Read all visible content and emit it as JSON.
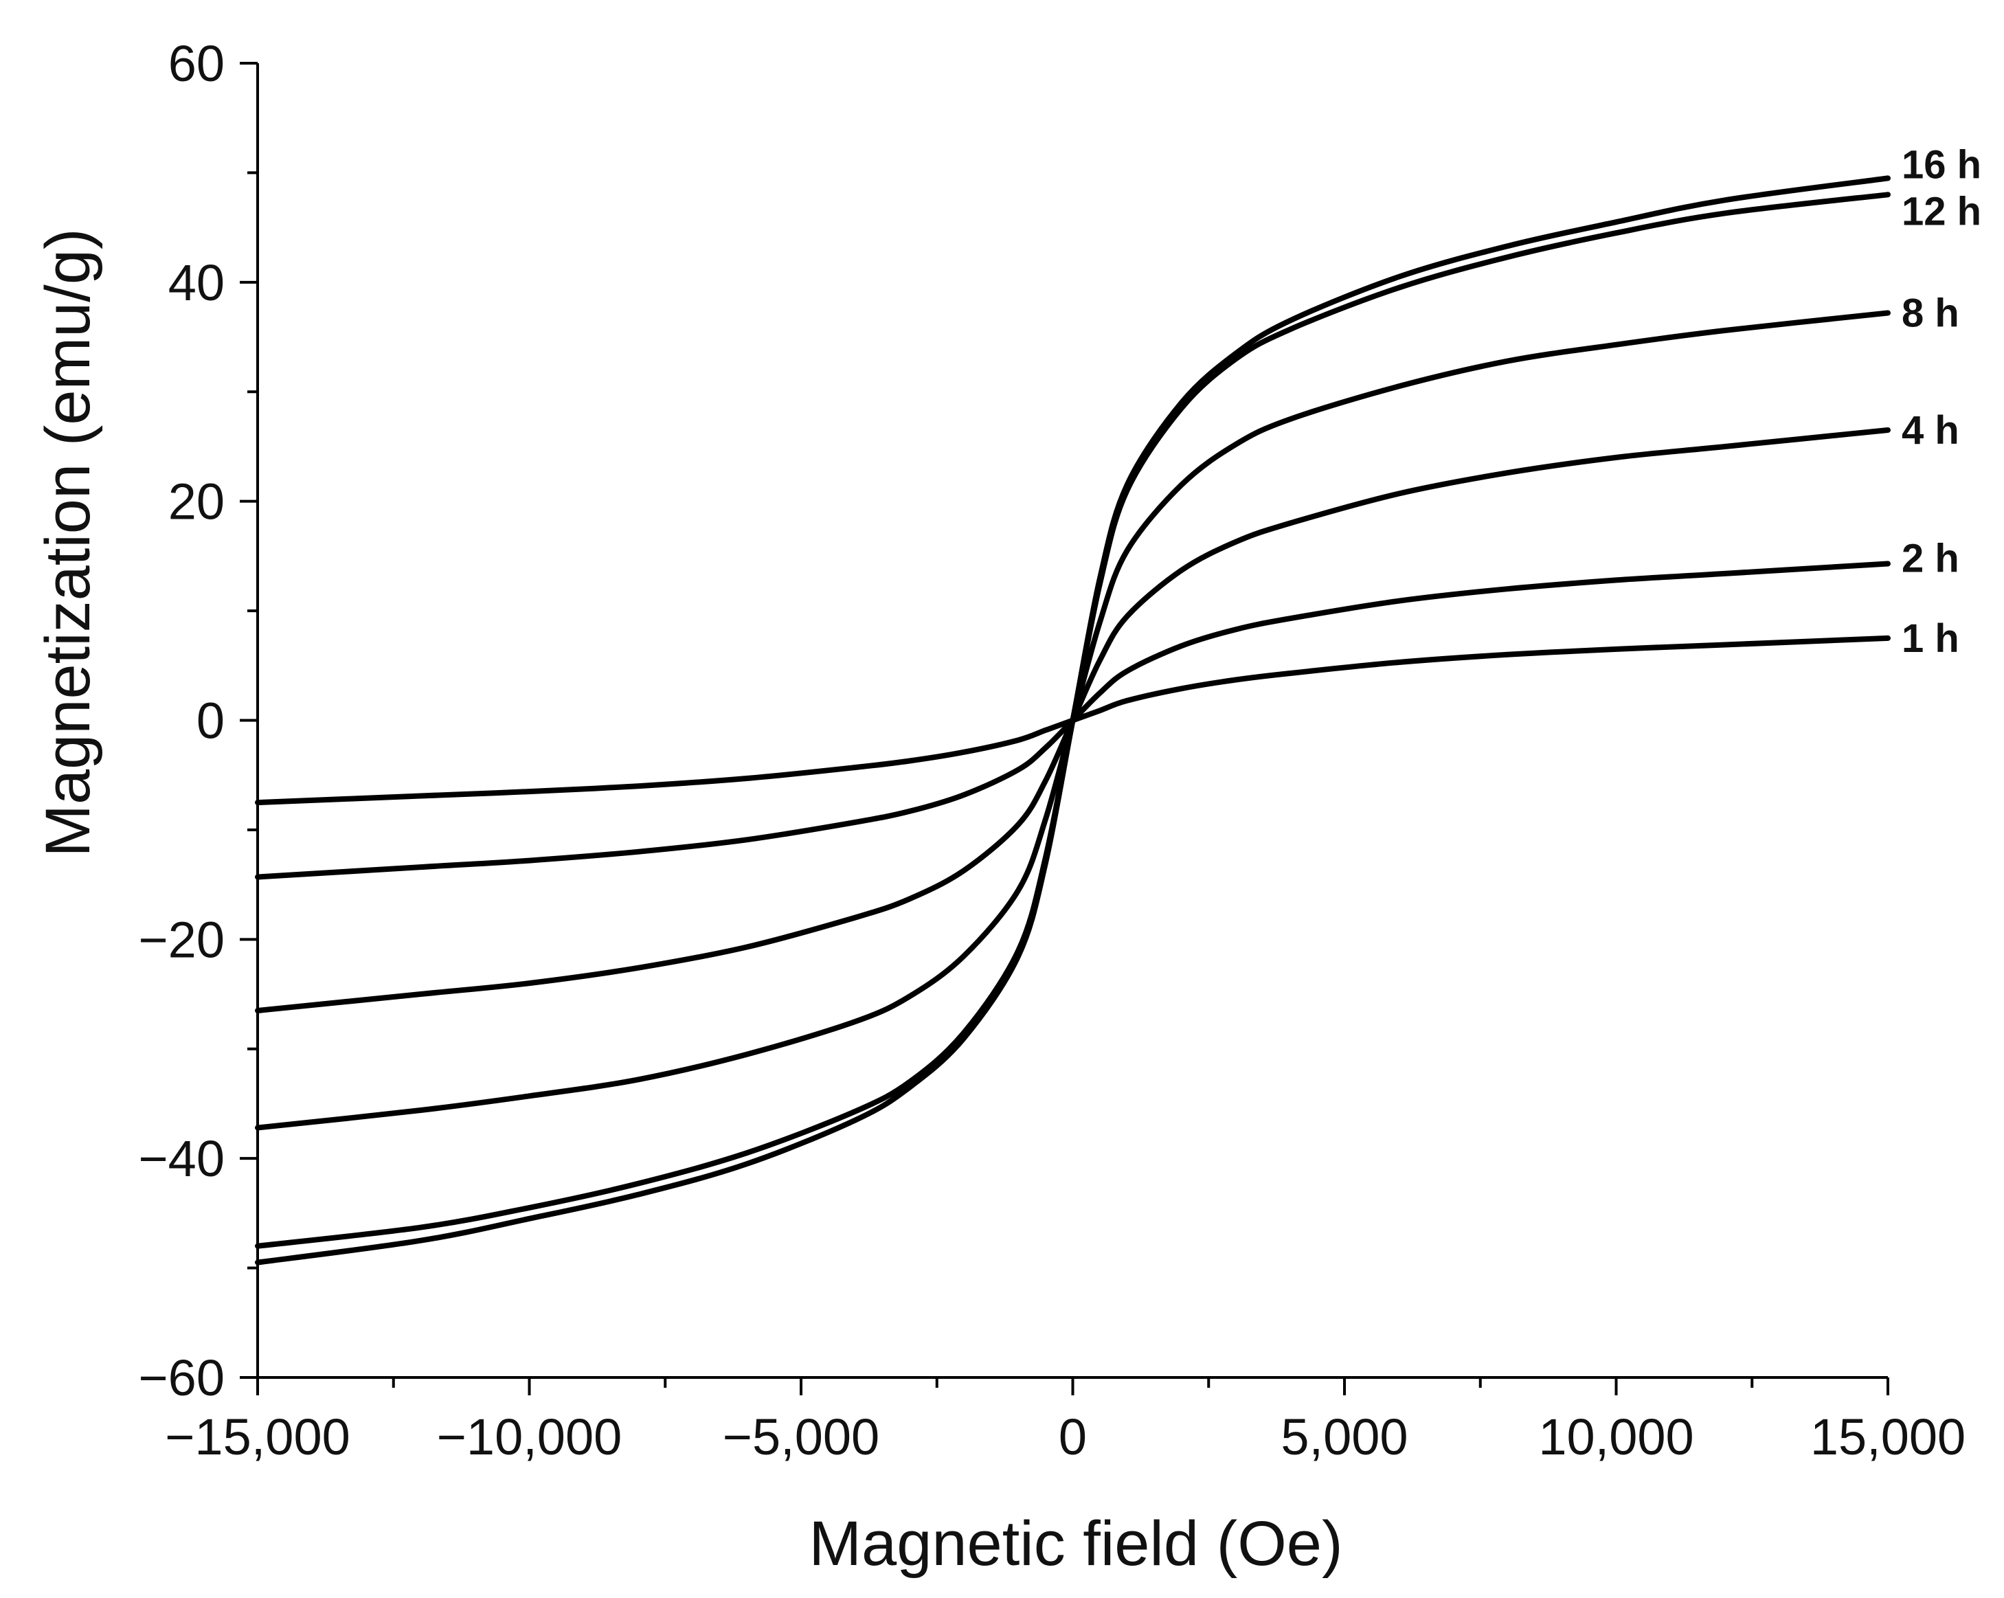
{
  "chart_data": {
    "type": "line",
    "title": "",
    "xlabel": "Magnetic field (Oe)",
    "ylabel": "Magnetization (emu/g)",
    "xlim": [
      -15000,
      15000
    ],
    "ylim": [
      -60,
      60
    ],
    "grid": false,
    "legend": "inline-right",
    "x_ticks": [
      -15000,
      -10000,
      -5000,
      0,
      5000,
      10000,
      15000
    ],
    "x_tick_labels": [
      "−15,000",
      "−10,000",
      "−5,000",
      "0",
      "5,000",
      "10,000",
      "15,000"
    ],
    "y_ticks": [
      -60,
      -40,
      -20,
      0,
      20,
      40,
      60
    ],
    "y_tick_labels": [
      "−60",
      "−40",
      "−20",
      "0",
      "20",
      "40",
      "60"
    ],
    "x": [
      -15000,
      -12000,
      -10000,
      -8000,
      -6000,
      -4000,
      -3000,
      -2000,
      -1000,
      -500,
      0,
      500,
      1000,
      2000,
      3000,
      4000,
      6000,
      8000,
      10000,
      12000,
      15000
    ],
    "series": [
      {
        "name": "16 h",
        "values": [
          -49.5,
          -47.5,
          -45.5,
          -43.3,
          -40.5,
          -36.5,
          -33.5,
          -29.0,
          -21.5,
          -13.0,
          0,
          13.0,
          21.5,
          29.0,
          33.5,
          36.5,
          40.5,
          43.3,
          45.5,
          47.5,
          49.5
        ]
      },
      {
        "name": "12 h",
        "values": [
          -48.0,
          -46.3,
          -44.5,
          -42.3,
          -39.5,
          -35.7,
          -33.0,
          -28.5,
          -21.0,
          -12.5,
          0,
          12.5,
          21.0,
          28.5,
          33.0,
          35.7,
          39.5,
          42.3,
          44.5,
          46.3,
          48.0
        ]
      },
      {
        "name": "8 h",
        "values": [
          -37.2,
          -35.6,
          -34.3,
          -32.8,
          -30.5,
          -27.5,
          -25.2,
          -21.5,
          -15.5,
          -9.0,
          0,
          9.0,
          15.5,
          21.5,
          25.2,
          27.5,
          30.5,
          32.8,
          34.3,
          35.6,
          37.2
        ]
      },
      {
        "name": "4 h",
        "values": [
          -26.5,
          -25.0,
          -24.0,
          -22.6,
          -20.7,
          -18.0,
          -16.3,
          -13.7,
          -9.5,
          -5.5,
          0,
          5.5,
          9.5,
          13.7,
          16.3,
          18.0,
          20.7,
          22.6,
          24.0,
          25.0,
          26.5
        ]
      },
      {
        "name": "2 h",
        "values": [
          -14.3,
          -13.4,
          -12.8,
          -12.0,
          -10.9,
          -9.3,
          -8.3,
          -6.8,
          -4.5,
          -2.5,
          0,
          2.5,
          4.5,
          6.8,
          8.3,
          9.3,
          10.9,
          12.0,
          12.8,
          13.4,
          14.3
        ]
      },
      {
        "name": "1 h",
        "values": [
          -7.5,
          -6.9,
          -6.5,
          -6.0,
          -5.3,
          -4.3,
          -3.7,
          -2.9,
          -1.8,
          -0.9,
          0,
          0.9,
          1.8,
          2.9,
          3.7,
          4.3,
          5.3,
          6.0,
          6.5,
          6.9,
          7.5
        ]
      }
    ]
  }
}
